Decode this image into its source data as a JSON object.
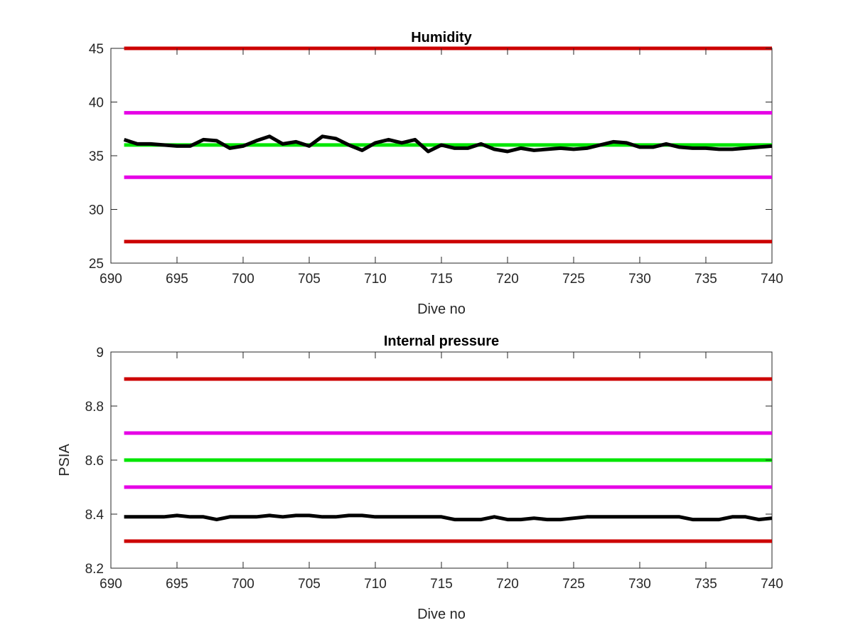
{
  "chart_data": [
    {
      "type": "line",
      "title": "Humidity",
      "xlabel": "Dive no",
      "ylabel": "",
      "xlim": [
        690,
        740
      ],
      "ylim": [
        25,
        45
      ],
      "xticks": [
        "690",
        "695",
        "700",
        "705",
        "710",
        "715",
        "720",
        "725",
        "730",
        "735",
        "740"
      ],
      "yticks": [
        "25",
        "30",
        "35",
        "40",
        "45"
      ],
      "grid": false,
      "reference_lines": [
        {
          "y": 45,
          "color": "#cc0000"
        },
        {
          "y": 39,
          "color": "#e600e6"
        },
        {
          "y": 36,
          "color": "#00e600"
        },
        {
          "y": 33,
          "color": "#e600e6"
        },
        {
          "y": 27,
          "color": "#cc0000"
        }
      ],
      "series": [
        {
          "color": "#000000",
          "x": [
            691,
            692,
            693,
            694,
            695,
            696,
            697,
            698,
            699,
            700,
            701,
            702,
            703,
            704,
            705,
            706,
            707,
            708,
            709,
            710,
            711,
            712,
            713,
            714,
            715,
            716,
            717,
            718,
            719,
            720,
            721,
            722,
            723,
            724,
            725,
            726,
            727,
            728,
            729,
            730,
            731,
            732,
            733,
            734,
            735,
            736,
            737,
            738,
            739,
            740
          ],
          "y": [
            36.5,
            36.1,
            36.1,
            36.0,
            35.9,
            35.9,
            36.5,
            36.4,
            35.7,
            35.9,
            36.4,
            36.8,
            36.1,
            36.3,
            35.9,
            36.8,
            36.6,
            36.0,
            35.5,
            36.2,
            36.5,
            36.2,
            36.5,
            35.4,
            36.0,
            35.7,
            35.7,
            36.1,
            35.6,
            35.4,
            35.7,
            35.5,
            35.6,
            35.7,
            35.6,
            35.7,
            36.0,
            36.3,
            36.2,
            35.8,
            35.8,
            36.1,
            35.8,
            35.7,
            35.7,
            35.6,
            35.6,
            35.7,
            35.8,
            35.9
          ]
        }
      ]
    },
    {
      "type": "line",
      "title": "Internal pressure",
      "xlabel": "Dive no",
      "ylabel": "PSIA",
      "xlim": [
        690,
        740
      ],
      "ylim": [
        8.2,
        9.0
      ],
      "xticks": [
        "690",
        "695",
        "700",
        "705",
        "710",
        "715",
        "720",
        "725",
        "730",
        "735",
        "740"
      ],
      "yticks": [
        "8.2",
        "8.4",
        "8.6",
        "8.8",
        "9"
      ],
      "grid": false,
      "reference_lines": [
        {
          "y": 8.9,
          "color": "#cc0000"
        },
        {
          "y": 8.7,
          "color": "#e600e6"
        },
        {
          "y": 8.6,
          "color": "#00e600"
        },
        {
          "y": 8.5,
          "color": "#e600e6"
        },
        {
          "y": 8.3,
          "color": "#cc0000"
        }
      ],
      "series": [
        {
          "color": "#000000",
          "x": [
            691,
            692,
            693,
            694,
            695,
            696,
            697,
            698,
            699,
            700,
            701,
            702,
            703,
            704,
            705,
            706,
            707,
            708,
            709,
            710,
            711,
            712,
            713,
            714,
            715,
            716,
            717,
            718,
            719,
            720,
            721,
            722,
            723,
            724,
            725,
            726,
            727,
            728,
            729,
            730,
            731,
            732,
            733,
            734,
            735,
            736,
            737,
            738,
            739,
            740
          ],
          "y": [
            8.39,
            8.39,
            8.39,
            8.39,
            8.395,
            8.39,
            8.39,
            8.38,
            8.39,
            8.39,
            8.39,
            8.395,
            8.39,
            8.395,
            8.395,
            8.39,
            8.39,
            8.395,
            8.395,
            8.39,
            8.39,
            8.39,
            8.39,
            8.39,
            8.39,
            8.38,
            8.38,
            8.38,
            8.39,
            8.38,
            8.38,
            8.385,
            8.38,
            8.38,
            8.385,
            8.39,
            8.39,
            8.39,
            8.39,
            8.39,
            8.39,
            8.39,
            8.39,
            8.38,
            8.38,
            8.38,
            8.39,
            8.39,
            8.38,
            8.385
          ]
        }
      ]
    }
  ]
}
